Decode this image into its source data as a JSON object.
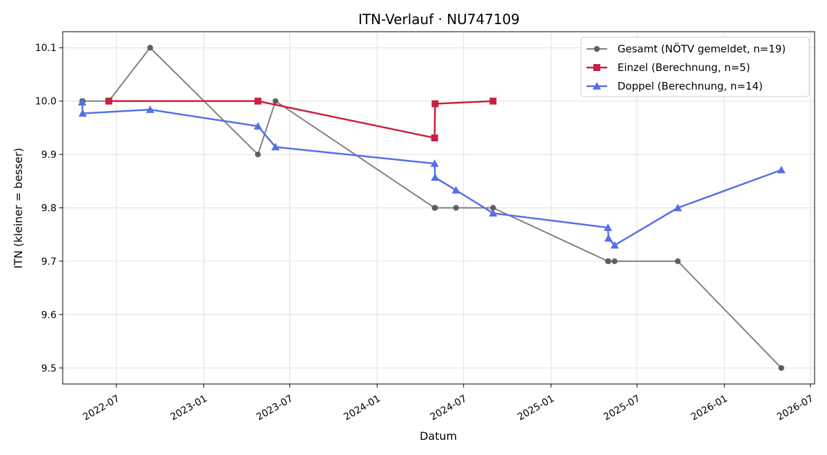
{
  "chart_data": {
    "type": "line",
    "title": "ITN-Verlauf · NU747109",
    "xlabel": "Datum",
    "ylabel": "ITN  (kleiner = besser)",
    "xlim": [
      "2022-03-10",
      "2026-07-10"
    ],
    "ylim": [
      9.47,
      10.13
    ],
    "x_ticks": [
      "2022-07",
      "2023-01",
      "2023-07",
      "2024-01",
      "2024-07",
      "2025-01",
      "2025-07",
      "2026-01",
      "2026-07"
    ],
    "y_ticks": [
      9.5,
      9.6,
      9.7,
      9.8,
      9.9,
      10.0,
      10.1
    ],
    "grid": true,
    "legend_position": "top-right",
    "series": [
      {
        "name": "Gesamt (NÖTV gemeldet, n=19)",
        "color": "#6b6b6b",
        "marker": "circle",
        "points": [
          [
            "2022-04-20",
            10.0
          ],
          [
            "2022-04-21",
            10.0
          ],
          [
            "2022-06-15",
            10.0
          ],
          [
            "2022-09-10",
            10.1
          ],
          [
            "2023-04-25",
            9.9
          ],
          [
            "2023-06-01",
            10.0
          ],
          [
            "2024-05-01",
            9.8
          ],
          [
            "2024-05-02",
            9.8
          ],
          [
            "2024-06-15",
            9.8
          ],
          [
            "2024-09-01",
            9.8
          ],
          [
            "2025-05-01",
            9.7
          ],
          [
            "2025-05-02",
            9.7
          ],
          [
            "2025-05-15",
            9.7
          ],
          [
            "2025-09-25",
            9.7
          ],
          [
            "2026-05-01",
            9.5
          ]
        ]
      },
      {
        "name": "Einzel (Berechnung, n=5)",
        "color": "#c8203f",
        "marker": "square",
        "points": [
          [
            "2022-06-15",
            10.0
          ],
          [
            "2023-04-25",
            10.0
          ],
          [
            "2024-05-01",
            9.931
          ],
          [
            "2024-05-02",
            9.995
          ],
          [
            "2024-09-01",
            10.0
          ]
        ]
      },
      {
        "name": "Doppel (Berechnung, n=14)",
        "color": "#5470e8",
        "marker": "triangle",
        "points": [
          [
            "2022-04-20",
            9.998
          ],
          [
            "2022-04-21",
            9.977
          ],
          [
            "2022-09-10",
            9.984
          ],
          [
            "2023-04-25",
            9.953
          ],
          [
            "2023-06-01",
            9.914
          ],
          [
            "2024-05-01",
            9.883
          ],
          [
            "2024-05-02",
            9.857
          ],
          [
            "2024-06-15",
            9.833
          ],
          [
            "2024-09-01",
            9.79
          ],
          [
            "2025-05-01",
            9.763
          ],
          [
            "2025-05-02",
            9.743
          ],
          [
            "2025-05-15",
            9.73
          ],
          [
            "2025-09-25",
            9.8
          ],
          [
            "2026-05-01",
            9.871
          ]
        ]
      }
    ]
  }
}
